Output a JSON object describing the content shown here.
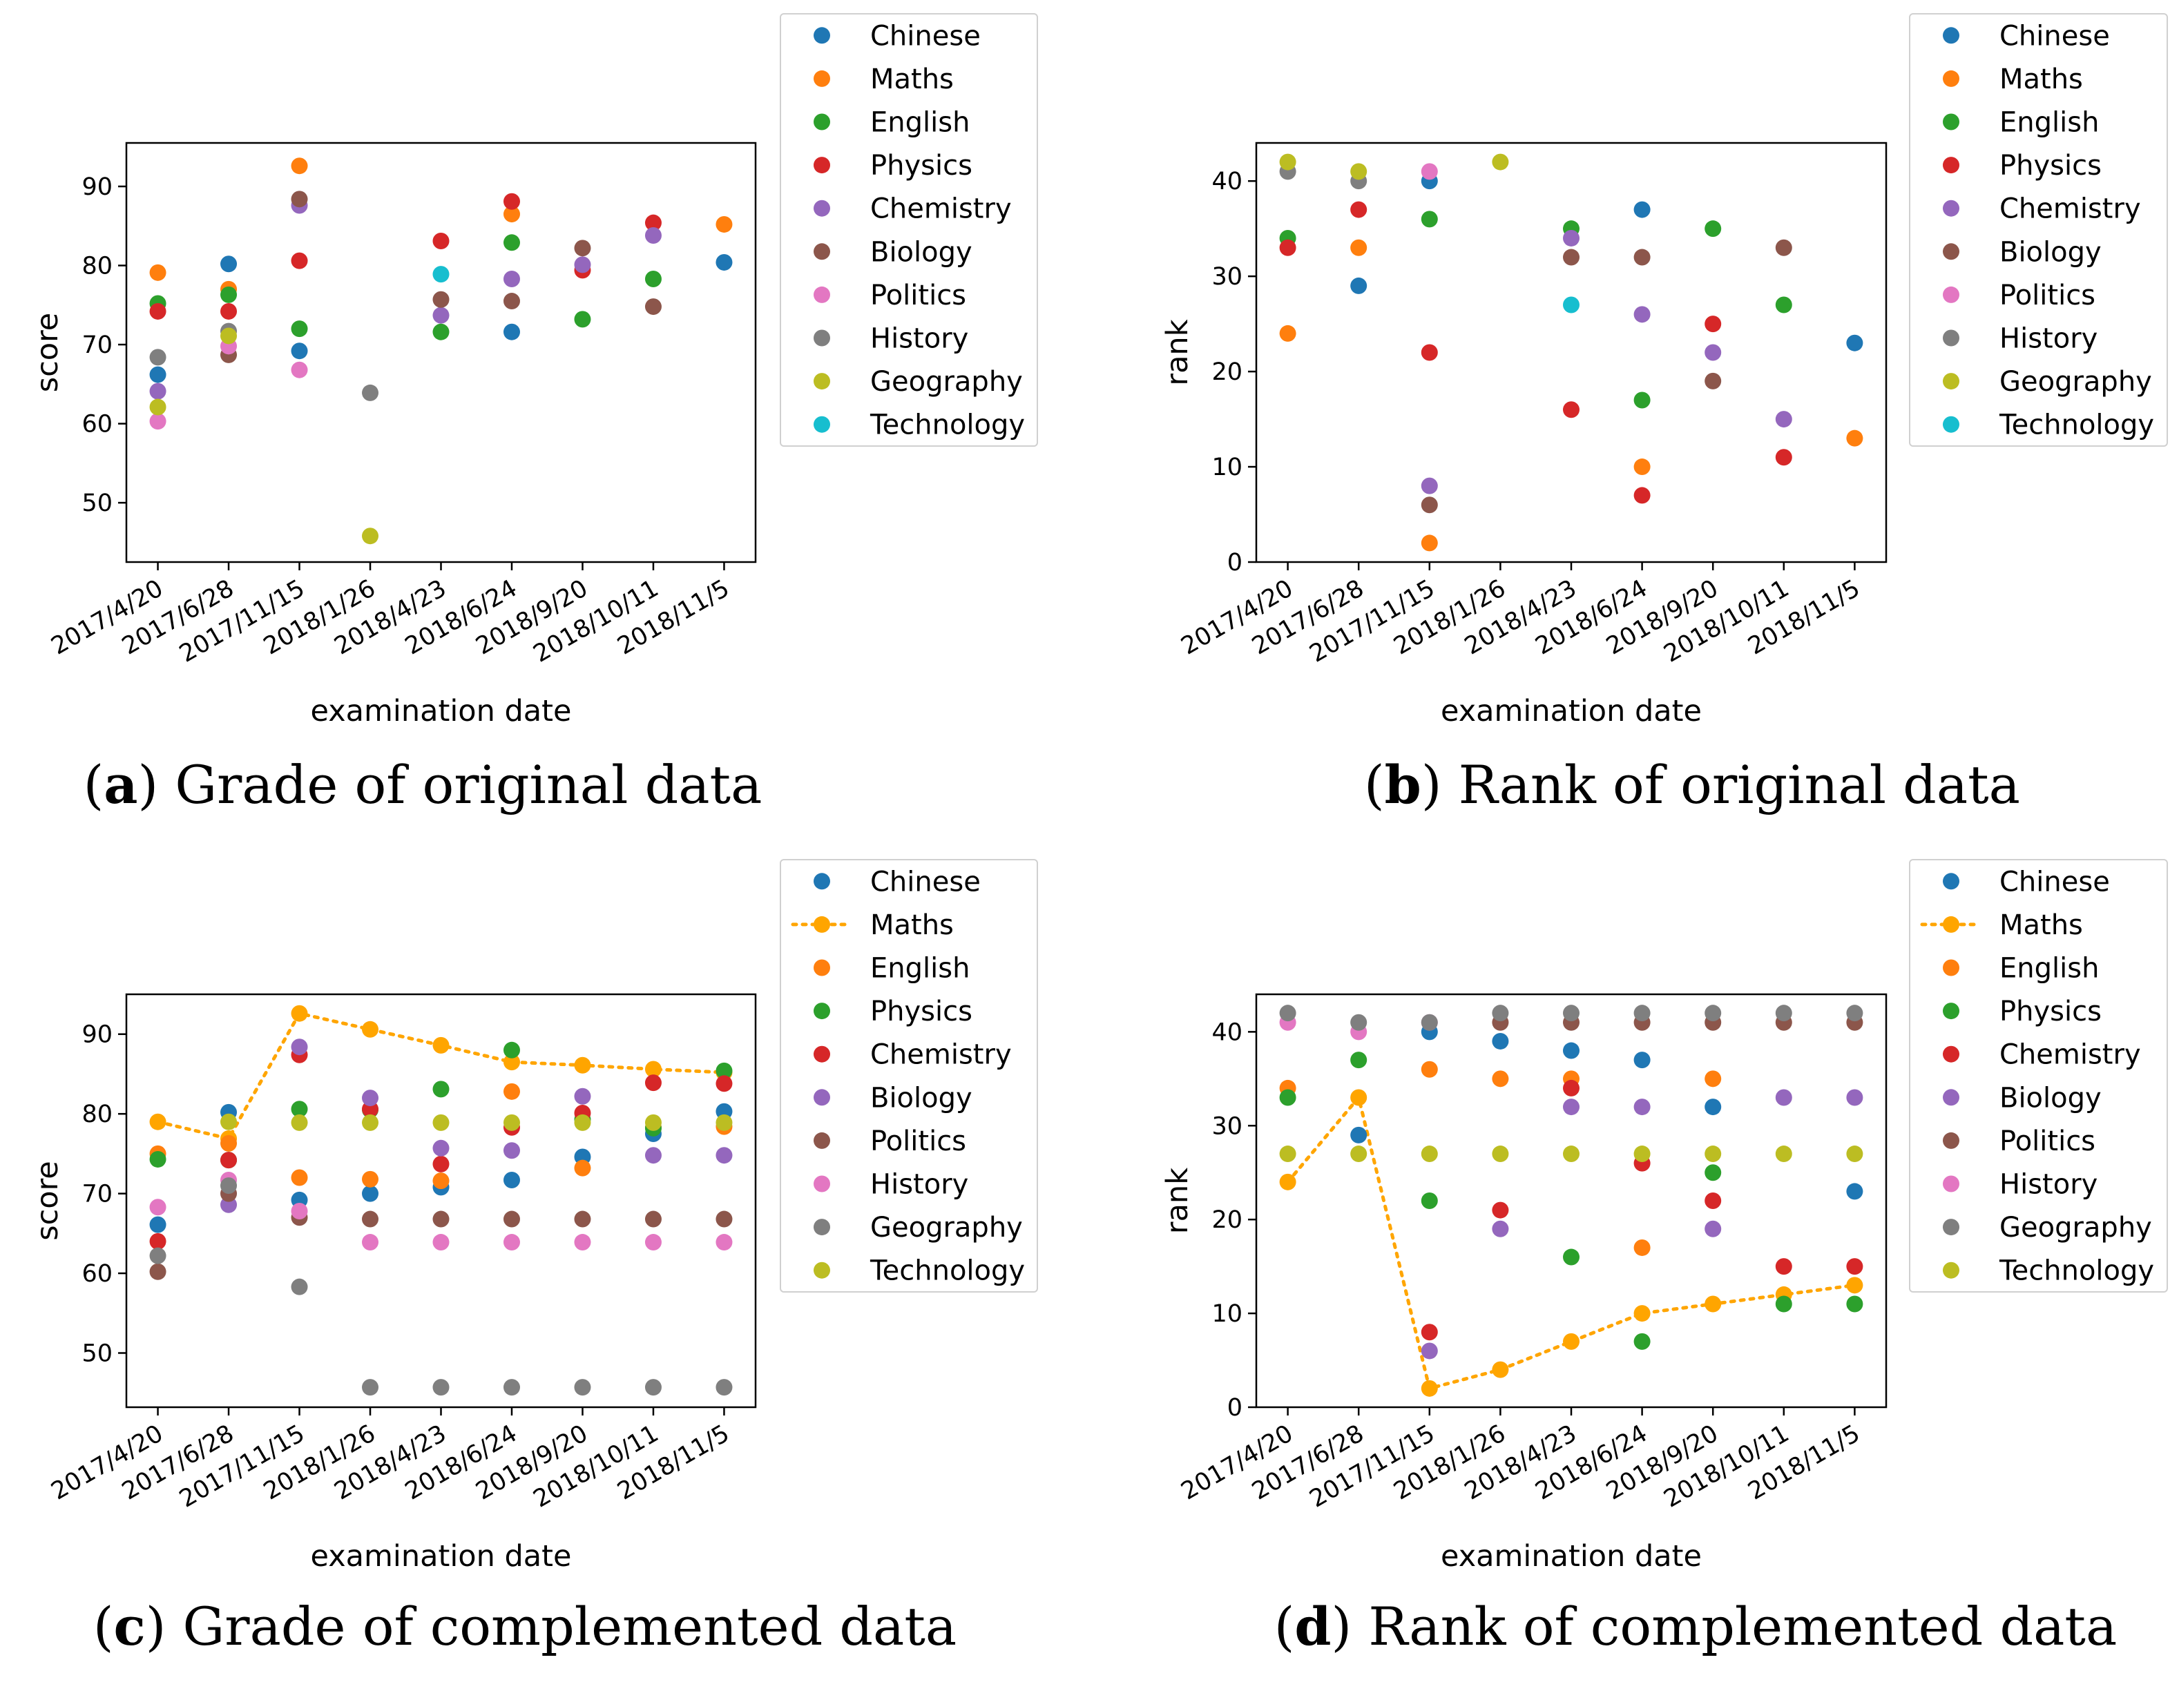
{
  "colors": {
    "tab:blue": "#1f77b4",
    "tab:orange": "#ff7f0e",
    "tab:green": "#2ca02c",
    "tab:red": "#d62728",
    "tab:purple": "#9467bd",
    "tab:brown": "#8c564b",
    "tab:pink": "#e377c2",
    "tab:gray": "#7f7f7f",
    "tab:olive": "#bcbd22",
    "tab:cyan": "#17becf",
    "maths_line": "#ffa500"
  },
  "chart_data": [
    {
      "id": "a",
      "type": "scatter",
      "caption_letter": "a",
      "caption_text": "Grade of original data",
      "xlabel": "examination date",
      "ylabel": "score",
      "categories": [
        "2017/4/20",
        "2017/6/28",
        "2017/11/15",
        "2018/1/26",
        "2018/4/23",
        "2018/6/24",
        "2018/9/20",
        "2018/10/11",
        "2018/11/5"
      ],
      "ylim": [
        42.5,
        95.5
      ],
      "yticks": [
        50,
        60,
        70,
        80,
        90
      ],
      "legend_position": "outside-top-right",
      "series": [
        {
          "name": "Chinese",
          "color": "#1f77b4",
          "values": [
            66.2,
            80.2,
            69.2,
            null,
            null,
            71.6,
            null,
            null,
            80.4
          ]
        },
        {
          "name": "Maths",
          "color": "#ff7f0e",
          "values": [
            79.1,
            77.0,
            92.6,
            null,
            null,
            86.5,
            null,
            null,
            85.2
          ]
        },
        {
          "name": "English",
          "color": "#2ca02c",
          "values": [
            75.2,
            76.3,
            72.0,
            null,
            71.6,
            82.9,
            73.2,
            78.3,
            null
          ]
        },
        {
          "name": "Physics",
          "color": "#d62728",
          "values": [
            74.2,
            74.2,
            80.6,
            null,
            83.1,
            88.1,
            79.4,
            85.4,
            null
          ]
        },
        {
          "name": "Chemistry",
          "color": "#9467bd",
          "values": [
            64.1,
            null,
            87.6,
            null,
            73.7,
            78.3,
            80.1,
            83.8,
            null
          ]
        },
        {
          "name": "Biology",
          "color": "#8c564b",
          "values": [
            null,
            68.7,
            88.4,
            null,
            75.7,
            75.5,
            82.2,
            74.8,
            null
          ]
        },
        {
          "name": "Politics",
          "color": "#e377c2",
          "values": [
            60.3,
            69.8,
            66.8,
            null,
            null,
            null,
            null,
            null,
            null
          ]
        },
        {
          "name": "History",
          "color": "#7f7f7f",
          "values": [
            68.4,
            71.7,
            null,
            63.9,
            null,
            null,
            null,
            null,
            null
          ]
        },
        {
          "name": "Geography",
          "color": "#bcbd22",
          "values": [
            62.1,
            71.1,
            null,
            45.8,
            null,
            null,
            null,
            null,
            null
          ]
        },
        {
          "name": "Technology",
          "color": "#17becf",
          "values": [
            null,
            null,
            null,
            null,
            78.9,
            null,
            null,
            null,
            null
          ]
        }
      ]
    },
    {
      "id": "b",
      "type": "scatter",
      "caption_letter": "b",
      "caption_text": "Rank of original data",
      "xlabel": "examination date",
      "ylabel": "rank",
      "categories": [
        "2017/4/20",
        "2017/6/28",
        "2017/11/15",
        "2018/1/26",
        "2018/4/23",
        "2018/6/24",
        "2018/9/20",
        "2018/10/11",
        "2018/11/5"
      ],
      "ylim": [
        0,
        44
      ],
      "yticks": [
        0,
        10,
        20,
        30,
        40
      ],
      "legend_position": "outside-top-right",
      "series": [
        {
          "name": "Chinese",
          "color": "#1f77b4",
          "values": [
            null,
            29,
            40,
            null,
            null,
            37,
            null,
            null,
            23
          ]
        },
        {
          "name": "Maths",
          "color": "#ff7f0e",
          "values": [
            24,
            33,
            2,
            null,
            null,
            10,
            null,
            null,
            13
          ]
        },
        {
          "name": "English",
          "color": "#2ca02c",
          "values": [
            34,
            null,
            36,
            null,
            35,
            17,
            35,
            27,
            null
          ]
        },
        {
          "name": "Physics",
          "color": "#d62728",
          "values": [
            33,
            37,
            22,
            null,
            16,
            7,
            25,
            11,
            null
          ]
        },
        {
          "name": "Chemistry",
          "color": "#9467bd",
          "values": [
            null,
            null,
            8,
            null,
            34,
            26,
            22,
            15,
            null
          ]
        },
        {
          "name": "Biology",
          "color": "#8c564b",
          "values": [
            null,
            null,
            6,
            null,
            32,
            32,
            19,
            33,
            null
          ]
        },
        {
          "name": "Politics",
          "color": "#e377c2",
          "values": [
            null,
            null,
            41,
            null,
            null,
            null,
            null,
            null,
            null
          ]
        },
        {
          "name": "History",
          "color": "#7f7f7f",
          "values": [
            41,
            40,
            null,
            null,
            null,
            null,
            null,
            null,
            null
          ]
        },
        {
          "name": "Geography",
          "color": "#bcbd22",
          "values": [
            42,
            41,
            null,
            42,
            null,
            null,
            null,
            null,
            null
          ]
        },
        {
          "name": "Technology",
          "color": "#17becf",
          "values": [
            null,
            null,
            null,
            null,
            27,
            null,
            null,
            null,
            null
          ]
        }
      ]
    },
    {
      "id": "c",
      "type": "scatter",
      "caption_letter": "c",
      "caption_text": "Grade of complemented data",
      "xlabel": "examination date",
      "ylabel": "score",
      "categories": [
        "2017/4/20",
        "2017/6/28",
        "2017/11/15",
        "2018/1/26",
        "2018/4/23",
        "2018/6/24",
        "2018/9/20",
        "2018/10/11",
        "2018/11/5"
      ],
      "ylim": [
        43.2,
        95.0
      ],
      "yticks": [
        50,
        60,
        70,
        80,
        90
      ],
      "legend_position": "outside-top-right",
      "series": [
        {
          "name": "Chinese",
          "color": "#1f77b4",
          "values": [
            66.1,
            80.2,
            69.2,
            70.0,
            70.8,
            71.7,
            74.6,
            77.5,
            80.3
          ]
        },
        {
          "name": "Maths",
          "color": "#ffa500",
          "line": "dotted",
          "values": [
            79.0,
            76.9,
            92.6,
            90.6,
            88.6,
            86.5,
            86.1,
            85.6,
            85.2
          ]
        },
        {
          "name": "English",
          "color": "#ff7f0e",
          "values": [
            75.0,
            76.3,
            72.0,
            71.8,
            71.6,
            82.8,
            73.2,
            78.3,
            78.4
          ]
        },
        {
          "name": "Physics",
          "color": "#2ca02c",
          "values": [
            74.3,
            74.2,
            80.6,
            80.5,
            83.1,
            88.0,
            79.3,
            78.2,
            85.4
          ]
        },
        {
          "name": "Chemistry",
          "color": "#d62728",
          "values": [
            64.0,
            74.2,
            87.4,
            80.6,
            73.7,
            78.3,
            80.1,
            83.9,
            83.8
          ]
        },
        {
          "name": "Biology",
          "color": "#9467bd",
          "values": [
            null,
            68.6,
            88.4,
            82.0,
            75.7,
            75.4,
            82.2,
            74.8,
            74.8
          ]
        },
        {
          "name": "Politics",
          "color": "#8c564b",
          "values": [
            60.2,
            70.0,
            67.0,
            66.8,
            66.8,
            66.8,
            66.8,
            66.8,
            66.8
          ]
        },
        {
          "name": "History",
          "color": "#e377c2",
          "values": [
            68.3,
            71.7,
            67.8,
            63.9,
            63.9,
            63.9,
            63.9,
            63.9,
            63.9
          ]
        },
        {
          "name": "Geography",
          "color": "#7f7f7f",
          "values": [
            62.2,
            71.0,
            58.3,
            45.7,
            45.7,
            45.7,
            45.7,
            45.7,
            45.7
          ]
        },
        {
          "name": "Technology",
          "color": "#bcbd22",
          "values": [
            null,
            79.0,
            78.9,
            78.9,
            78.9,
            78.9,
            78.9,
            78.9,
            78.9
          ]
        }
      ]
    },
    {
      "id": "d",
      "type": "scatter",
      "caption_letter": "d",
      "caption_text": "Rank of complemented data",
      "xlabel": "examination date",
      "ylabel": "rank",
      "categories": [
        "2017/4/20",
        "2017/6/28",
        "2017/11/15",
        "2018/1/26",
        "2018/4/23",
        "2018/6/24",
        "2018/9/20",
        "2018/10/11",
        "2018/11/5"
      ],
      "ylim": [
        0,
        44
      ],
      "yticks": [
        0,
        10,
        20,
        30,
        40
      ],
      "legend_position": "outside-top-right",
      "series": [
        {
          "name": "Chinese",
          "color": "#1f77b4",
          "values": [
            null,
            29,
            40,
            39,
            38,
            37,
            32,
            null,
            23
          ]
        },
        {
          "name": "Maths",
          "color": "#ffa500",
          "line": "dotted",
          "values": [
            24,
            33,
            2,
            4,
            7,
            10,
            11,
            12,
            13
          ]
        },
        {
          "name": "English",
          "color": "#ff7f0e",
          "values": [
            34,
            null,
            36,
            35,
            35,
            17,
            35,
            null,
            null
          ]
        },
        {
          "name": "Physics",
          "color": "#2ca02c",
          "values": [
            33,
            37,
            22,
            null,
            16,
            7,
            25,
            11,
            11
          ]
        },
        {
          "name": "Chemistry",
          "color": "#d62728",
          "values": [
            null,
            null,
            8,
            21,
            34,
            26,
            22,
            15,
            15
          ]
        },
        {
          "name": "Biology",
          "color": "#9467bd",
          "values": [
            null,
            null,
            6,
            19,
            32,
            32,
            19,
            33,
            33
          ]
        },
        {
          "name": "Politics",
          "color": "#8c564b",
          "values": [
            null,
            null,
            null,
            41,
            41,
            41,
            41,
            41,
            41
          ]
        },
        {
          "name": "History",
          "color": "#e377c2",
          "values": [
            41,
            40,
            41,
            null,
            null,
            null,
            null,
            null,
            null
          ]
        },
        {
          "name": "Geography",
          "color": "#7f7f7f",
          "values": [
            42,
            41,
            41,
            42,
            42,
            42,
            42,
            42,
            42
          ]
        },
        {
          "name": "Technology",
          "color": "#bcbd22",
          "values": [
            27,
            27,
            27,
            27,
            27,
            27,
            27,
            27,
            27
          ]
        }
      ]
    }
  ]
}
